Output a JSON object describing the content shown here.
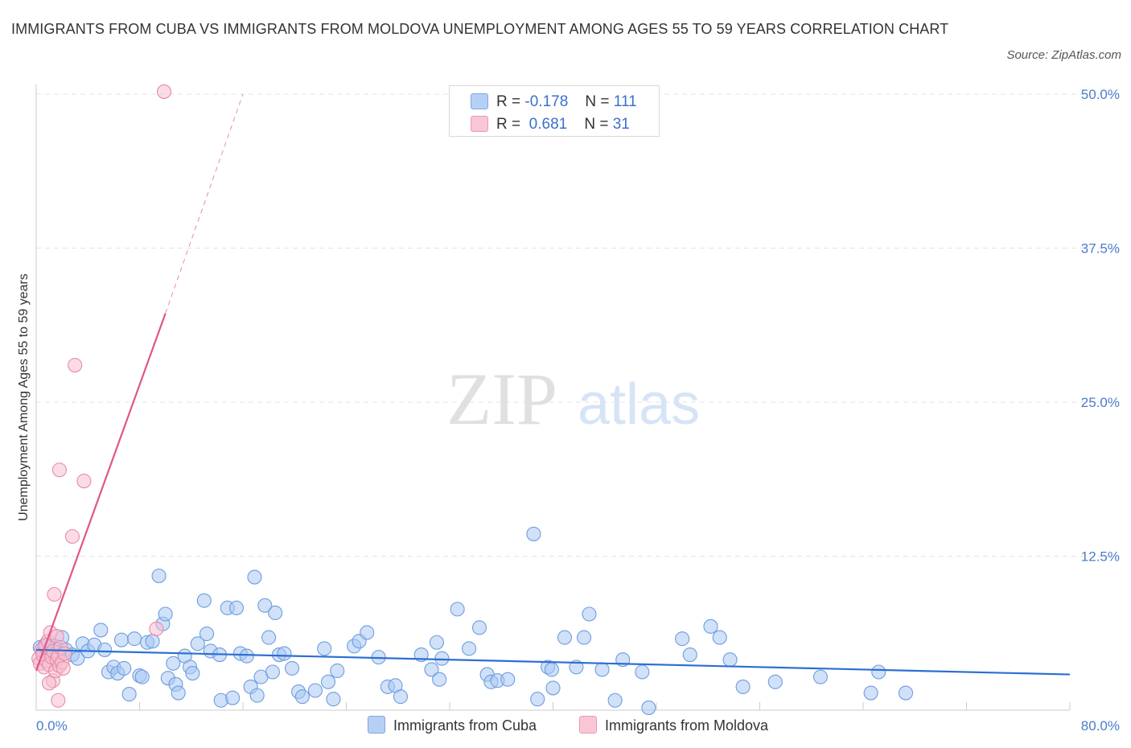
{
  "title": "IMMIGRANTS FROM CUBA VS IMMIGRANTS FROM MOLDOVA UNEMPLOYMENT AMONG AGES 55 TO 59 YEARS CORRELATION CHART",
  "source": "Source: ZipAtlas.com",
  "watermark": {
    "zip": "ZIP",
    "atlas": "atlas"
  },
  "legend": {
    "r_label": "R =",
    "n_label": "N =",
    "series": [
      {
        "name": "Immigrants from Cuba",
        "r": "-0.178",
        "n": "111",
        "color": "#aac8f2",
        "stroke": "#6d9de0"
      },
      {
        "name": "Immigrants from Moldova",
        "r": " 0.681",
        "n": "31",
        "color": "#f8bfd0",
        "stroke": "#e88aa8"
      }
    ]
  },
  "chart_data": {
    "type": "scatter",
    "title": "IMMIGRANTS FROM CUBA VS IMMIGRANTS FROM MOLDOVA UNEMPLOYMENT AMONG AGES 55 TO 59 YEARS CORRELATION CHART",
    "xlabel": "",
    "ylabel": "Unemployment Among Ages 55 to 59 years",
    "xlim": [
      0,
      80
    ],
    "ylim": [
      0,
      50
    ],
    "x_tick_labels": [
      {
        "value": 0,
        "label": "0.0%"
      },
      {
        "value": 80,
        "label": "80.0%"
      }
    ],
    "y_tick_labels": [
      {
        "value": 12.5,
        "label": "12.5%"
      },
      {
        "value": 25,
        "label": "25.0%"
      },
      {
        "value": 37.5,
        "label": "37.5%"
      },
      {
        "value": 50,
        "label": "50.0%"
      }
    ],
    "grid": true,
    "series": [
      {
        "name": "Immigrants from Cuba",
        "color": "#aac8f2",
        "stroke": "#6d9de0",
        "trend": {
          "x1": 0,
          "y1": 4.9,
          "x2": 80,
          "y2": 2.9,
          "color": "#2c6fd1"
        },
        "points": [
          [
            0.3,
            5.1
          ],
          [
            0.5,
            4.8
          ],
          [
            0.7,
            5.3
          ],
          [
            0.9,
            4.6
          ],
          [
            1.1,
            5.0
          ],
          [
            1.3,
            4.3
          ],
          [
            1.5,
            5.2
          ],
          [
            1.7,
            4.7
          ],
          [
            2.0,
            5.9
          ],
          [
            2.3,
            4.9
          ],
          [
            2.8,
            4.5
          ],
          [
            3.2,
            4.2
          ],
          [
            3.6,
            5.4
          ],
          [
            4.0,
            4.8
          ],
          [
            4.5,
            5.3
          ],
          [
            5.0,
            6.5
          ],
          [
            5.3,
            4.9
          ],
          [
            5.6,
            3.1
          ],
          [
            6.0,
            3.5
          ],
          [
            6.3,
            3.0
          ],
          [
            6.6,
            5.7
          ],
          [
            7.2,
            1.3
          ],
          [
            7.6,
            5.8
          ],
          [
            8.0,
            2.8
          ],
          [
            8.2,
            2.7
          ],
          [
            8.6,
            5.5
          ],
          [
            9.0,
            5.6
          ],
          [
            9.5,
            10.9
          ],
          [
            9.8,
            7.0
          ],
          [
            10.0,
            7.8
          ],
          [
            10.2,
            2.6
          ],
          [
            10.6,
            3.8
          ],
          [
            10.8,
            2.1
          ],
          [
            11.0,
            1.4
          ],
          [
            11.5,
            4.4
          ],
          [
            11.9,
            3.5
          ],
          [
            12.1,
            3.0
          ],
          [
            12.5,
            5.4
          ],
          [
            13.0,
            8.9
          ],
          [
            13.2,
            6.2
          ],
          [
            13.5,
            4.8
          ],
          [
            14.3,
            0.8
          ],
          [
            14.8,
            8.3
          ],
          [
            15.2,
            1.0
          ],
          [
            15.5,
            8.3
          ],
          [
            15.8,
            4.6
          ],
          [
            16.3,
            4.4
          ],
          [
            16.6,
            1.9
          ],
          [
            16.9,
            10.8
          ],
          [
            17.1,
            1.2
          ],
          [
            17.4,
            2.7
          ],
          [
            17.7,
            8.5
          ],
          [
            18.0,
            5.9
          ],
          [
            18.3,
            3.1
          ],
          [
            18.5,
            7.9
          ],
          [
            18.8,
            4.5
          ],
          [
            19.2,
            4.6
          ],
          [
            19.8,
            3.4
          ],
          [
            20.3,
            1.5
          ],
          [
            20.6,
            1.1
          ],
          [
            21.6,
            1.6
          ],
          [
            22.3,
            5.0
          ],
          [
            22.6,
            2.3
          ],
          [
            23.0,
            0.9
          ],
          [
            23.3,
            3.2
          ],
          [
            24.6,
            5.2
          ],
          [
            25.0,
            5.6
          ],
          [
            25.6,
            6.3
          ],
          [
            26.5,
            4.3
          ],
          [
            27.2,
            1.9
          ],
          [
            27.8,
            2.0
          ],
          [
            28.2,
            1.1
          ],
          [
            29.8,
            4.5
          ],
          [
            30.6,
            3.3
          ],
          [
            31.0,
            5.5
          ],
          [
            31.2,
            2.5
          ],
          [
            31.4,
            4.2
          ],
          [
            32.6,
            8.2
          ],
          [
            33.5,
            5.0
          ],
          [
            34.3,
            6.7
          ],
          [
            34.9,
            2.9
          ],
          [
            35.2,
            2.3
          ],
          [
            35.7,
            2.4
          ],
          [
            36.5,
            2.5
          ],
          [
            38.5,
            14.3
          ],
          [
            38.8,
            0.9
          ],
          [
            39.6,
            3.5
          ],
          [
            39.9,
            3.3
          ],
          [
            40.0,
            1.8
          ],
          [
            40.9,
            5.9
          ],
          [
            41.8,
            3.5
          ],
          [
            42.4,
            5.9
          ],
          [
            42.8,
            7.8
          ],
          [
            43.8,
            3.3
          ],
          [
            44.8,
            0.8
          ],
          [
            45.4,
            4.1
          ],
          [
            46.9,
            3.1
          ],
          [
            47.4,
            0.2
          ],
          [
            50.0,
            5.8
          ],
          [
            50.6,
            4.5
          ],
          [
            52.2,
            6.8
          ],
          [
            52.9,
            5.9
          ],
          [
            53.7,
            4.1
          ],
          [
            54.7,
            1.9
          ],
          [
            57.2,
            2.3
          ],
          [
            60.7,
            2.7
          ],
          [
            64.6,
            1.4
          ],
          [
            65.2,
            3.1
          ],
          [
            67.3,
            1.4
          ],
          [
            14.2,
            4.5
          ],
          [
            6.8,
            3.4
          ]
        ]
      },
      {
        "name": "Immigrants from Moldova",
        "color": "#f8bfd0",
        "stroke": "#e88aa8",
        "trend": {
          "x1": 0,
          "y1": 3.2,
          "x2": 10,
          "y2": 32.2,
          "color": "#e0558a",
          "dash_to": {
            "x": 16,
            "y": 50
          }
        },
        "points": [
          [
            0.2,
            4.2
          ],
          [
            0.3,
            3.8
          ],
          [
            0.4,
            4.9
          ],
          [
            0.5,
            4.5
          ],
          [
            0.6,
            3.5
          ],
          [
            0.7,
            5.2
          ],
          [
            0.8,
            4.0
          ],
          [
            0.9,
            5.6
          ],
          [
            1.0,
            3.7
          ],
          [
            1.1,
            6.3
          ],
          [
            1.2,
            4.3
          ],
          [
            1.3,
            2.4
          ],
          [
            1.3,
            4.8
          ],
          [
            1.4,
            9.4
          ],
          [
            1.5,
            3.2
          ],
          [
            1.6,
            6.0
          ],
          [
            1.6,
            4.1
          ],
          [
            1.7,
            0.8
          ],
          [
            1.7,
            4.4
          ],
          [
            1.8,
            3.6
          ],
          [
            1.8,
            19.5
          ],
          [
            1.9,
            5.1
          ],
          [
            2.0,
            3.9
          ],
          [
            2.1,
            3.4
          ],
          [
            2.2,
            4.6
          ],
          [
            2.8,
            14.1
          ],
          [
            3.0,
            28.0
          ],
          [
            3.7,
            18.6
          ],
          [
            9.3,
            6.6
          ],
          [
            9.9,
            50.2
          ],
          [
            1.0,
            2.2
          ]
        ]
      }
    ]
  }
}
